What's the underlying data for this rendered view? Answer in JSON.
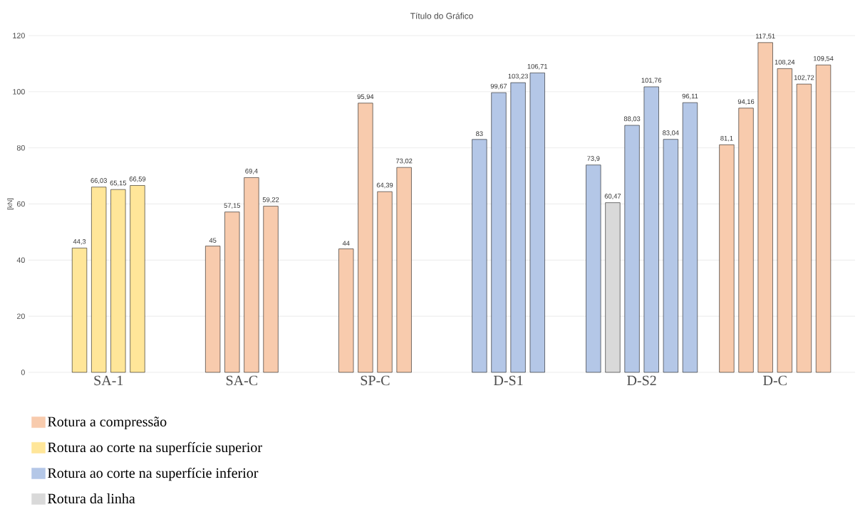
{
  "chart_data": {
    "type": "bar",
    "title": "Título do Gráfico",
    "ylabel": "[kN]",
    "categories": [
      "SA-1",
      "SA-C",
      "SP-C",
      "D-S1",
      "D-S2",
      "D-C"
    ],
    "series": [
      {
        "values": [
          44.3,
          45,
          44,
          83,
          73.9,
          81.1
        ],
        "value_labels": [
          "44,3",
          "45",
          "44",
          "83",
          "73,9",
          "81,1"
        ],
        "colors": [
          "#ffe699",
          "#f8cbad",
          "#f8cbad",
          "#b4c7e7",
          "#b4c7e7",
          "#f8cbad"
        ]
      },
      {
        "values": [
          66.03,
          57.15,
          95.94,
          99.67,
          60.47,
          94.16
        ],
        "value_labels": [
          "66,03",
          "57,15",
          "95,94",
          "99,67",
          "60,47",
          "94,16"
        ],
        "colors": [
          "#ffe699",
          "#f8cbad",
          "#f8cbad",
          "#b4c7e7",
          "#d9d9d9",
          "#f8cbad"
        ]
      },
      {
        "values": [
          65.15,
          69.4,
          64.39,
          103.23,
          88.03,
          117.51
        ],
        "value_labels": [
          "65,15",
          "69,4",
          "64,39",
          "103,23",
          "88,03",
          "117,51"
        ],
        "colors": [
          "#ffe699",
          "#f8cbad",
          "#f8cbad",
          "#b4c7e7",
          "#b4c7e7",
          "#f8cbad"
        ]
      },
      {
        "values": [
          66.59,
          59.22,
          73.02,
          106.71,
          101.76,
          108.24
        ],
        "value_labels": [
          "66,59",
          "59,22",
          "73,02",
          "106,71",
          "101,76",
          "108,24"
        ],
        "colors": [
          "#ffe699",
          "#f8cbad",
          "#f8cbad",
          "#b4c7e7",
          "#b4c7e7",
          "#f8cbad"
        ]
      },
      {
        "values": [
          null,
          null,
          null,
          null,
          83.04,
          102.72
        ],
        "value_labels": [
          null,
          null,
          null,
          null,
          "83,04",
          "102,72"
        ],
        "colors": [
          null,
          null,
          null,
          null,
          "#b4c7e7",
          "#f8cbad"
        ]
      },
      {
        "values": [
          null,
          null,
          null,
          null,
          96.11,
          109.54
        ],
        "value_labels": [
          null,
          null,
          null,
          null,
          "96,11",
          "109,54"
        ],
        "colors": [
          null,
          null,
          null,
          null,
          "#b4c7e7",
          "#f8cbad"
        ]
      },
      {
        "name": "Rotura a compressão",
        "color": "#f8cbad",
        "values": [
          null,
          null,
          null,
          null,
          null,
          null
        ]
      },
      {
        "name": "Rotura ao corte na superfície superior",
        "color": "#ffe699",
        "values": [
          null,
          null,
          null,
          null,
          null,
          null
        ]
      },
      {
        "name": "Rotura ao corte na superfície inferior",
        "color": "#b4c7e7",
        "values": [
          null,
          null,
          null,
          null,
          null,
          null
        ]
      },
      {
        "name": "Rotura da linha",
        "color": "#d9d9d9",
        "values": [
          null,
          null,
          null,
          null,
          null,
          null
        ]
      }
    ],
    "ylim": [
      0,
      120
    ],
    "yticks": [
      0,
      20,
      40,
      60,
      80,
      100,
      120
    ],
    "grid": "y",
    "legend": "bottom left"
  }
}
